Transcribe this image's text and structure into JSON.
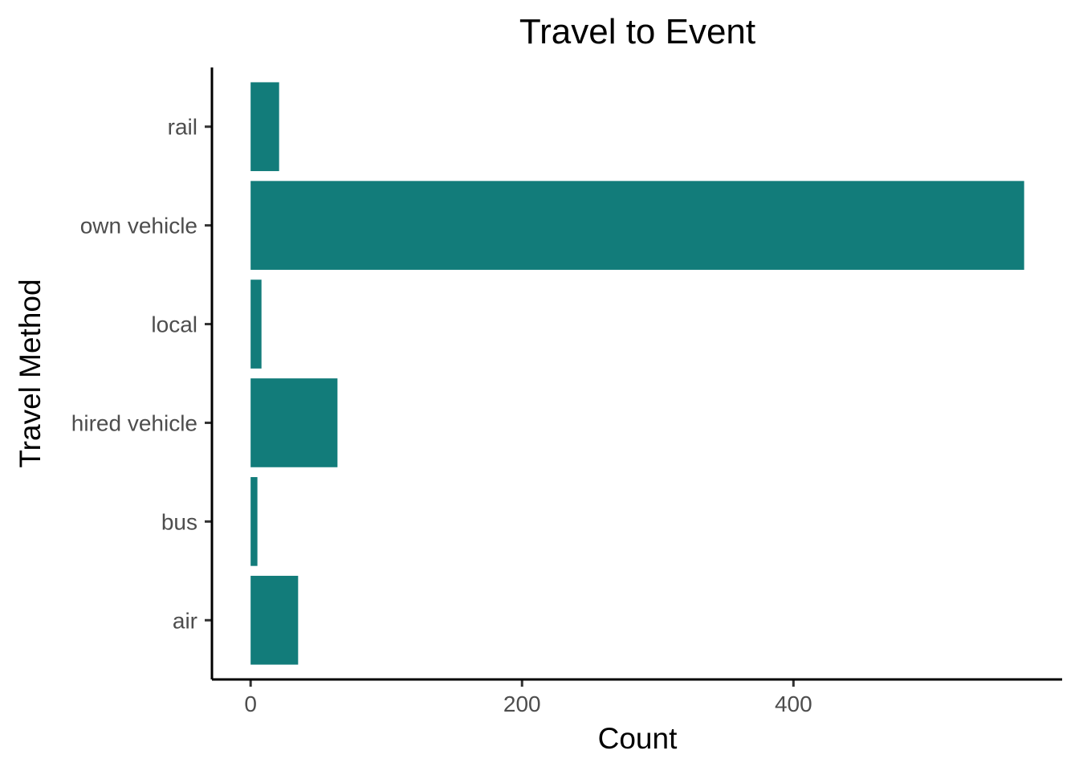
{
  "chart_data": {
    "type": "bar",
    "orientation": "horizontal",
    "title": "Travel to Event",
    "xlabel": "Count",
    "ylabel": "Travel Method",
    "categories": [
      "air",
      "bus",
      "hired vehicle",
      "local",
      "own vehicle",
      "rail"
    ],
    "values": [
      35,
      5,
      64,
      8,
      570,
      21
    ],
    "xlim": [
      -28.5,
      598
    ],
    "xticks": [
      0,
      200,
      400
    ],
    "grid": false,
    "legend": "none",
    "bar_color": "#127C7A"
  }
}
